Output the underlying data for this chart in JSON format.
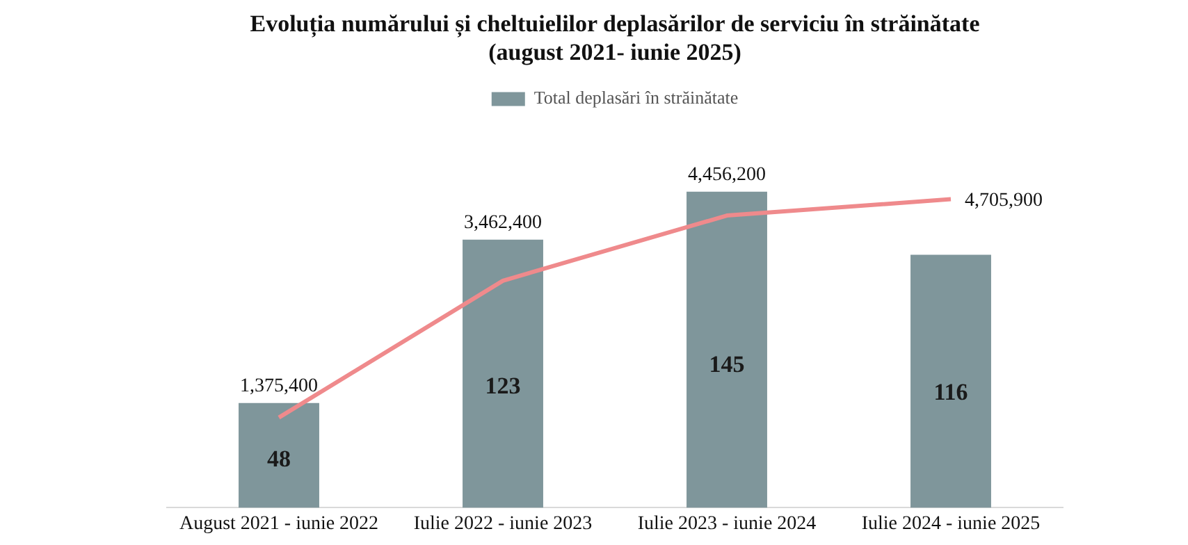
{
  "chart_data": {
    "type": "bar",
    "title": "Evoluția numărului și cheltuielilor deplasărilor de serviciu în străinătate\n(august 2021- iunie 2025)",
    "categories": [
      "August 2021 - iunie 2022",
      "Iulie 2022 - iunie 2023",
      "Iulie 2023 - iunie 2024",
      "Iulie 2024 - iunie 2025"
    ],
    "series": [
      {
        "name": "Total deplasări în străinătate",
        "color": "#7f969b",
        "values": [
          48,
          123,
          145,
          116
        ]
      },
      {
        "type": "line",
        "axis": "y2",
        "color": "#ef8a8c",
        "values": [
          1375400,
          3462400,
          4456200,
          4705900
        ],
        "value_labels": [
          "1,375,400",
          "3,462,400",
          "4,456,200",
          "4,705,900"
        ]
      }
    ],
    "data_labels": true,
    "legend": "top",
    "marker": "none",
    "line_style": "solid",
    "grid": false
  }
}
